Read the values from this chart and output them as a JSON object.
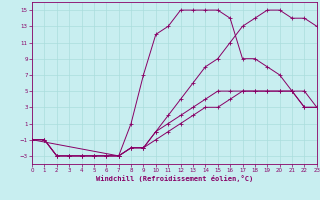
{
  "xlabel": "Windchill (Refroidissement éolien,°C)",
  "bg_color": "#c8eef0",
  "line_color": "#880066",
  "grid_color": "#aadddd",
  "xlim": [
    0,
    23
  ],
  "ylim": [
    -4,
    16
  ],
  "xticks": [
    0,
    1,
    2,
    3,
    4,
    5,
    6,
    7,
    8,
    9,
    10,
    11,
    12,
    13,
    14,
    15,
    16,
    17,
    18,
    19,
    20,
    21,
    22,
    23
  ],
  "yticks": [
    -3,
    -1,
    1,
    3,
    5,
    7,
    9,
    11,
    13,
    15
  ],
  "lines": [
    {
      "x": [
        0,
        1,
        2,
        3,
        4,
        5,
        6,
        7,
        8,
        9,
        10,
        11,
        12,
        13,
        14,
        15,
        16,
        17,
        18,
        19,
        20,
        21,
        22,
        23
      ],
      "y": [
        -1,
        -1,
        -3,
        -3,
        -3,
        -3,
        -3,
        -3,
        -2,
        -2,
        -1,
        0,
        1,
        2,
        3,
        3,
        4,
        5,
        5,
        5,
        5,
        5,
        3,
        3
      ]
    },
    {
      "x": [
        0,
        1,
        2,
        3,
        4,
        5,
        6,
        7,
        8,
        9,
        10,
        11,
        12,
        13,
        14,
        15,
        16,
        17,
        18,
        19,
        20,
        21,
        22,
        23
      ],
      "y": [
        -1,
        -1,
        -3,
        -3,
        -3,
        -3,
        -3,
        -3,
        -2,
        -2,
        0,
        2,
        4,
        6,
        8,
        9,
        11,
        13,
        14,
        15,
        15,
        14,
        14,
        13
      ]
    },
    {
      "x": [
        0,
        7,
        8,
        9,
        10,
        11,
        12,
        13,
        14,
        15,
        16,
        17,
        18,
        19,
        20,
        21,
        22,
        23
      ],
      "y": [
        -1,
        -3,
        1,
        7,
        12,
        13,
        15,
        15,
        15,
        15,
        14,
        9,
        9,
        8,
        7,
        5,
        5,
        3
      ]
    },
    {
      "x": [
        0,
        1,
        2,
        3,
        4,
        5,
        6,
        7,
        8,
        9,
        10,
        11,
        12,
        13,
        14,
        15,
        16,
        17,
        18,
        19,
        20,
        21,
        22,
        23
      ],
      "y": [
        -1,
        -1,
        -3,
        -3,
        -3,
        -3,
        -3,
        -3,
        -2,
        -2,
        0,
        1,
        2,
        3,
        4,
        5,
        5,
        5,
        5,
        5,
        5,
        5,
        3,
        3
      ]
    }
  ]
}
